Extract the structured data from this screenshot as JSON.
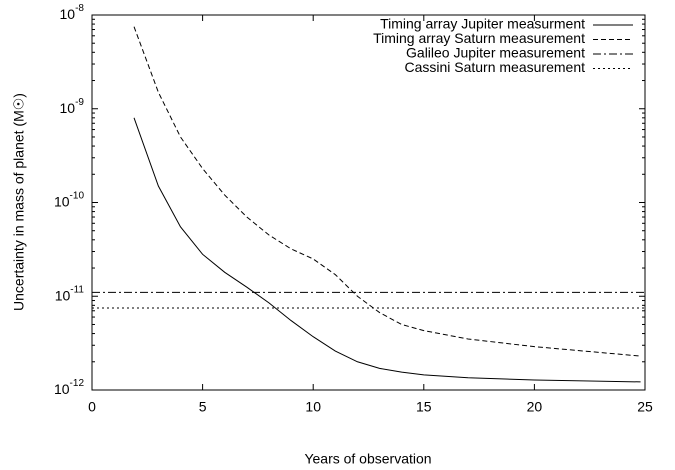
{
  "chart_data": {
    "type": "line",
    "xlabel": "Years of observation",
    "ylabel": "Uncertainty in mass of planet (M☉)",
    "xlim": [
      0,
      25
    ],
    "xticks": [
      0,
      5,
      10,
      15,
      20,
      25
    ],
    "ylim": [
      1e-12,
      1e-08
    ],
    "log_y": true,
    "yticks": [
      {
        "value": 1e-12,
        "label": "10^-12"
      },
      {
        "value": 1e-11,
        "label": "10^-11"
      },
      {
        "value": 1e-10,
        "label": "10^-10"
      },
      {
        "value": 1e-09,
        "label": "10^-9"
      },
      {
        "value": 1e-08,
        "label": "10^-8"
      }
    ],
    "legend": "upper right",
    "series": [
      {
        "name": "Timing array Jupiter measurment",
        "color": "#000000",
        "dash": "solid",
        "x": [
          1.9,
          3,
          4,
          5,
          6,
          7,
          8,
          9,
          10,
          11,
          12,
          13,
          14,
          15,
          17,
          20,
          24.8
        ],
        "values": [
          8e-10,
          1.5e-10,
          5.5e-11,
          2.8e-11,
          1.8e-11,
          1.25e-11,
          8.5e-12,
          5.5e-12,
          3.7e-12,
          2.6e-12,
          2e-12,
          1.7e-12,
          1.55e-12,
          1.45e-12,
          1.35e-12,
          1.28e-12,
          1.22e-12
        ]
      },
      {
        "name": "Timing array Saturn measurement",
        "color": "#000000",
        "dash": "dashed",
        "x": [
          1.9,
          3,
          4,
          5,
          6,
          7,
          8,
          9,
          10,
          11,
          12,
          13,
          14,
          15,
          17,
          20,
          24.8
        ],
        "values": [
          7.5e-09,
          1.5e-09,
          5e-10,
          2.3e-10,
          1.2e-10,
          7e-11,
          4.5e-11,
          3.2e-11,
          2.5e-11,
          1.7e-11,
          1e-11,
          6.7e-12,
          5e-12,
          4.3e-12,
          3.5e-12,
          2.9e-12,
          2.3e-12
        ]
      },
      {
        "name": "Galileo Jupiter measurement",
        "color": "#000000",
        "dash": "dashdot",
        "x": [
          0,
          25
        ],
        "values": [
          1.1e-11,
          1.1e-11
        ]
      },
      {
        "name": "Cassini Saturn measurement",
        "color": "#000000",
        "dash": "dotted",
        "x": [
          0,
          25
        ],
        "values": [
          7.5e-12,
          7.5e-12
        ]
      }
    ]
  }
}
